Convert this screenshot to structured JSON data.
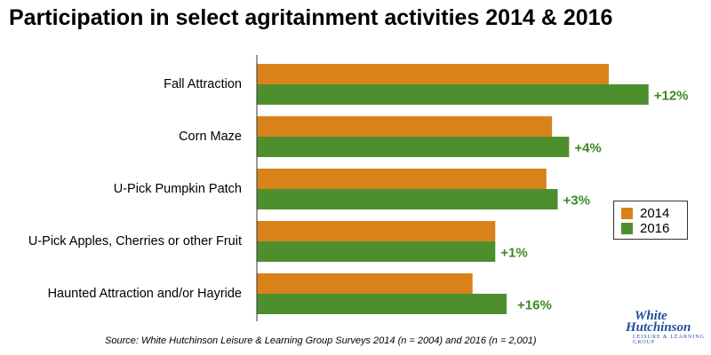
{
  "title": "Participation in select agritainment activities 2014 & 2016",
  "source": "Source: White Hutchinson Leisure & Learning Group Surveys 2014 (n = 2004) and 2016 (n = 2,001)",
  "logo": {
    "line1": "White",
    "line2": "Hutchinson",
    "line3": "LEISURE & LEARNING GROUP"
  },
  "colors": {
    "2014": "#d9821a",
    "2016": "#4e8f2d",
    "delta": "#3a8a22"
  },
  "chart_data": {
    "type": "bar",
    "orientation": "horizontal",
    "title": "Participation in select agritainment activities 2014 & 2016",
    "categories": [
      "Fall Attraction",
      "Corn Maze",
      "U-Pick Pumpkin Patch",
      "U-Pick Apples, Cherries or other Fruit",
      "Haunted Attraction and/or Hayride"
    ],
    "series": [
      {
        "name": "2014",
        "values": [
          62,
          52,
          51,
          42,
          38
        ]
      },
      {
        "name": "2016",
        "values": [
          69,
          55,
          53,
          42,
          44
        ]
      }
    ],
    "annotations": [
      "+12%",
      "+4%",
      "+3%",
      "+1%",
      "+16%"
    ],
    "xlim": [
      0,
      80
    ],
    "grid": false,
    "legend": "right"
  }
}
